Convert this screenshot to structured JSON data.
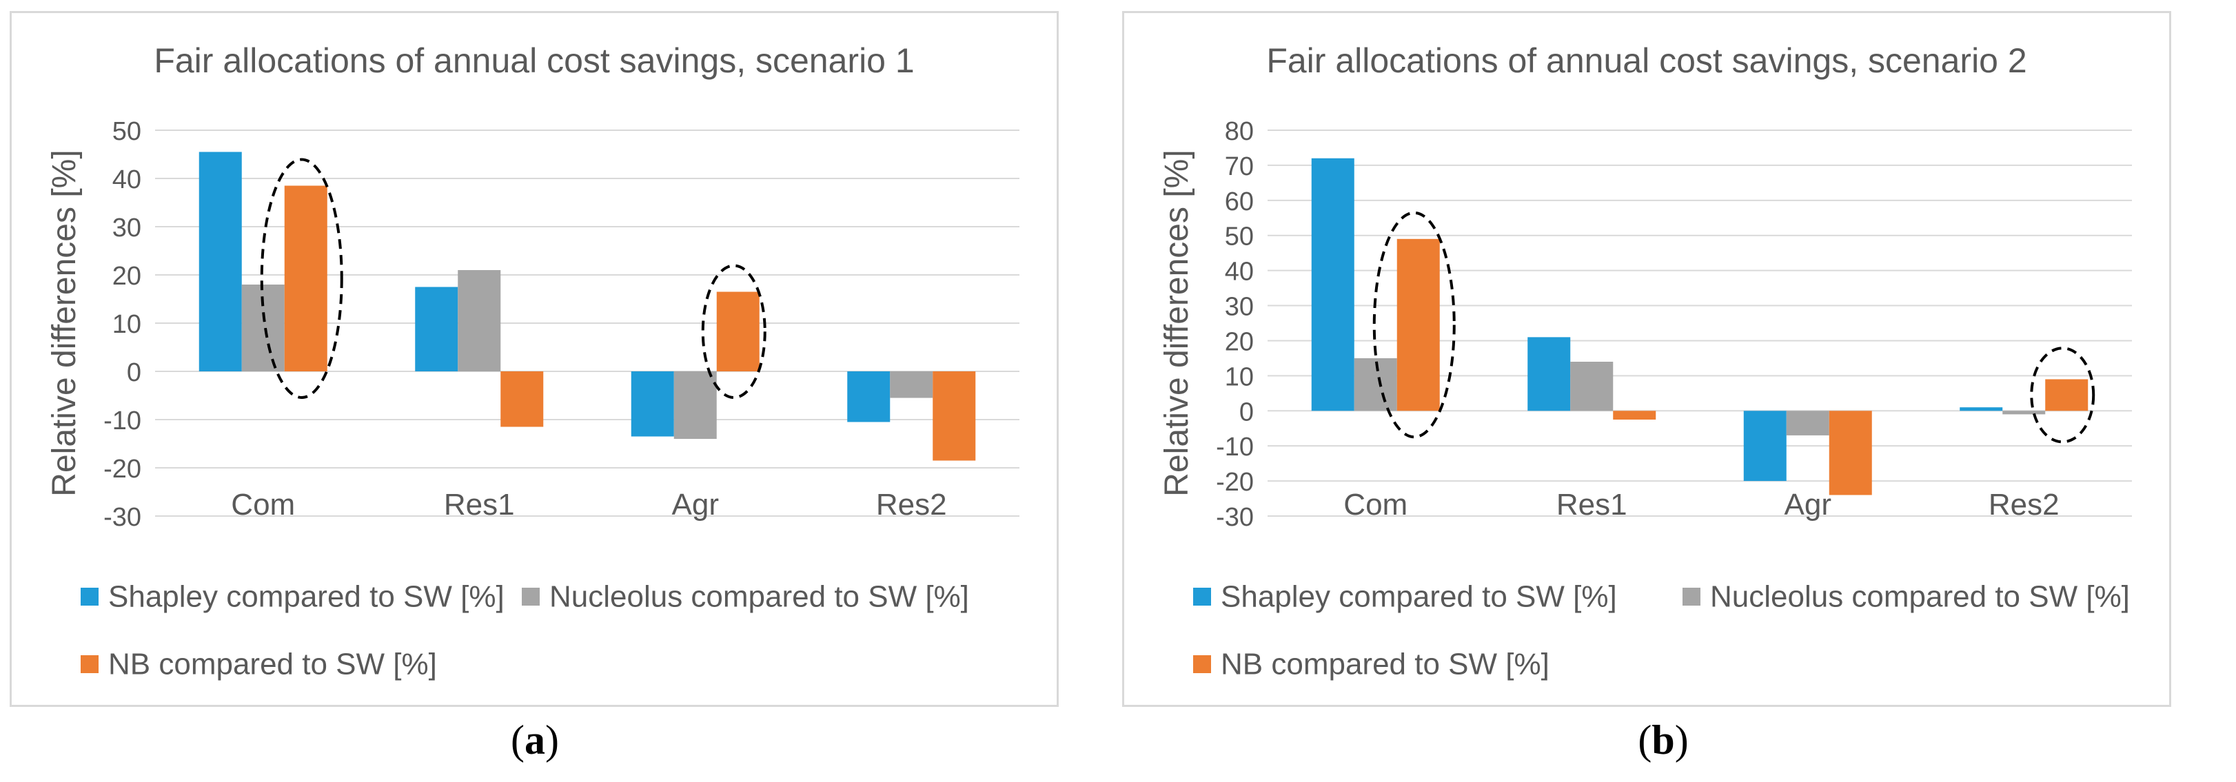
{
  "colors": {
    "shapley": "#1f9bd7",
    "nucleolus": "#a5a5a5",
    "nb": "#ed7d31",
    "grid": "#d9d9d9",
    "text": "#595959"
  },
  "chart_data": [
    {
      "type": "bar",
      "title": "Fair allocations of annual cost savings, scenario 1",
      "ylabel": "Relative differences [%]",
      "xlabel": "",
      "categories": [
        "Com",
        "Res1",
        "Agr",
        "Res2"
      ],
      "series": [
        {
          "name": "Shapley compared to SW [%]",
          "values": [
            45.5,
            17.5,
            -13.5,
            -10.5
          ]
        },
        {
          "name": "Nucleolus compared to SW [%]",
          "values": [
            18,
            21,
            -14,
            -5.5
          ]
        },
        {
          "name": "NB compared to SW [%]",
          "values": [
            38.5,
            -11.5,
            16.5,
            -18.5
          ]
        }
      ],
      "ylim": [
        -30,
        50
      ],
      "yticks": [
        -30,
        -20,
        -10,
        0,
        10,
        20,
        30,
        40,
        50
      ],
      "grid": true,
      "legend": "bottom",
      "annotations": "dashed ellipses around NB bars for Com and Agr",
      "caption": "(a)"
    },
    {
      "type": "bar",
      "title": "Fair allocations of annual cost savings, scenario 2",
      "ylabel": "Relative differences [%]",
      "xlabel": "",
      "categories": [
        "Com",
        "Res1",
        "Agr",
        "Res2"
      ],
      "series": [
        {
          "name": "Shapley compared to SW [%]",
          "values": [
            72,
            21,
            -20,
            1
          ]
        },
        {
          "name": "Nucleolus compared to SW [%]",
          "values": [
            15,
            14,
            -7,
            -1
          ]
        },
        {
          "name": "NB compared to SW [%]",
          "values": [
            49,
            -2.5,
            -24,
            9
          ]
        }
      ],
      "ylim": [
        -30,
        80
      ],
      "yticks": [
        -30,
        -20,
        -10,
        0,
        10,
        20,
        30,
        40,
        50,
        60,
        70,
        80
      ],
      "grid": true,
      "legend": "bottom",
      "annotations": "dashed ellipses around NB bars for Com and Res2",
      "caption": "(b)"
    }
  ]
}
